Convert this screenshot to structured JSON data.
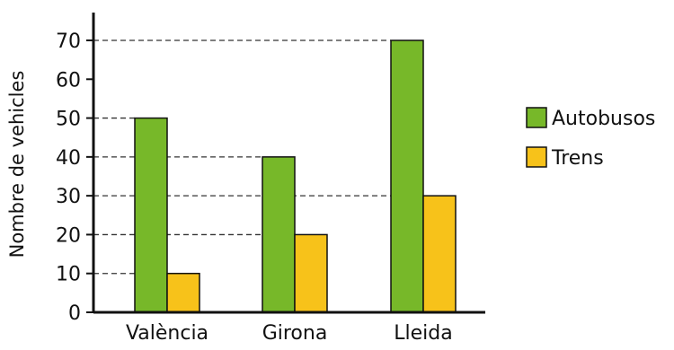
{
  "chart_data": {
    "type": "bar",
    "title": "",
    "xlabel": "",
    "ylabel": "Nombre de vehicles",
    "categories": [
      "València",
      "Girona",
      "Lleida"
    ],
    "series": [
      {
        "name": "Autobusos",
        "values": [
          50,
          40,
          70
        ],
        "color": "#77b829"
      },
      {
        "name": "Trens",
        "values": [
          10,
          20,
          30
        ],
        "color": "#f7c21a"
      }
    ],
    "y_ticks": [
      "0",
      "10",
      "20",
      "30",
      "40",
      "50",
      "60",
      "70"
    ],
    "ylim": [
      0,
      70
    ],
    "grid": "dashed reference lines at bar tops",
    "legend": "right"
  }
}
